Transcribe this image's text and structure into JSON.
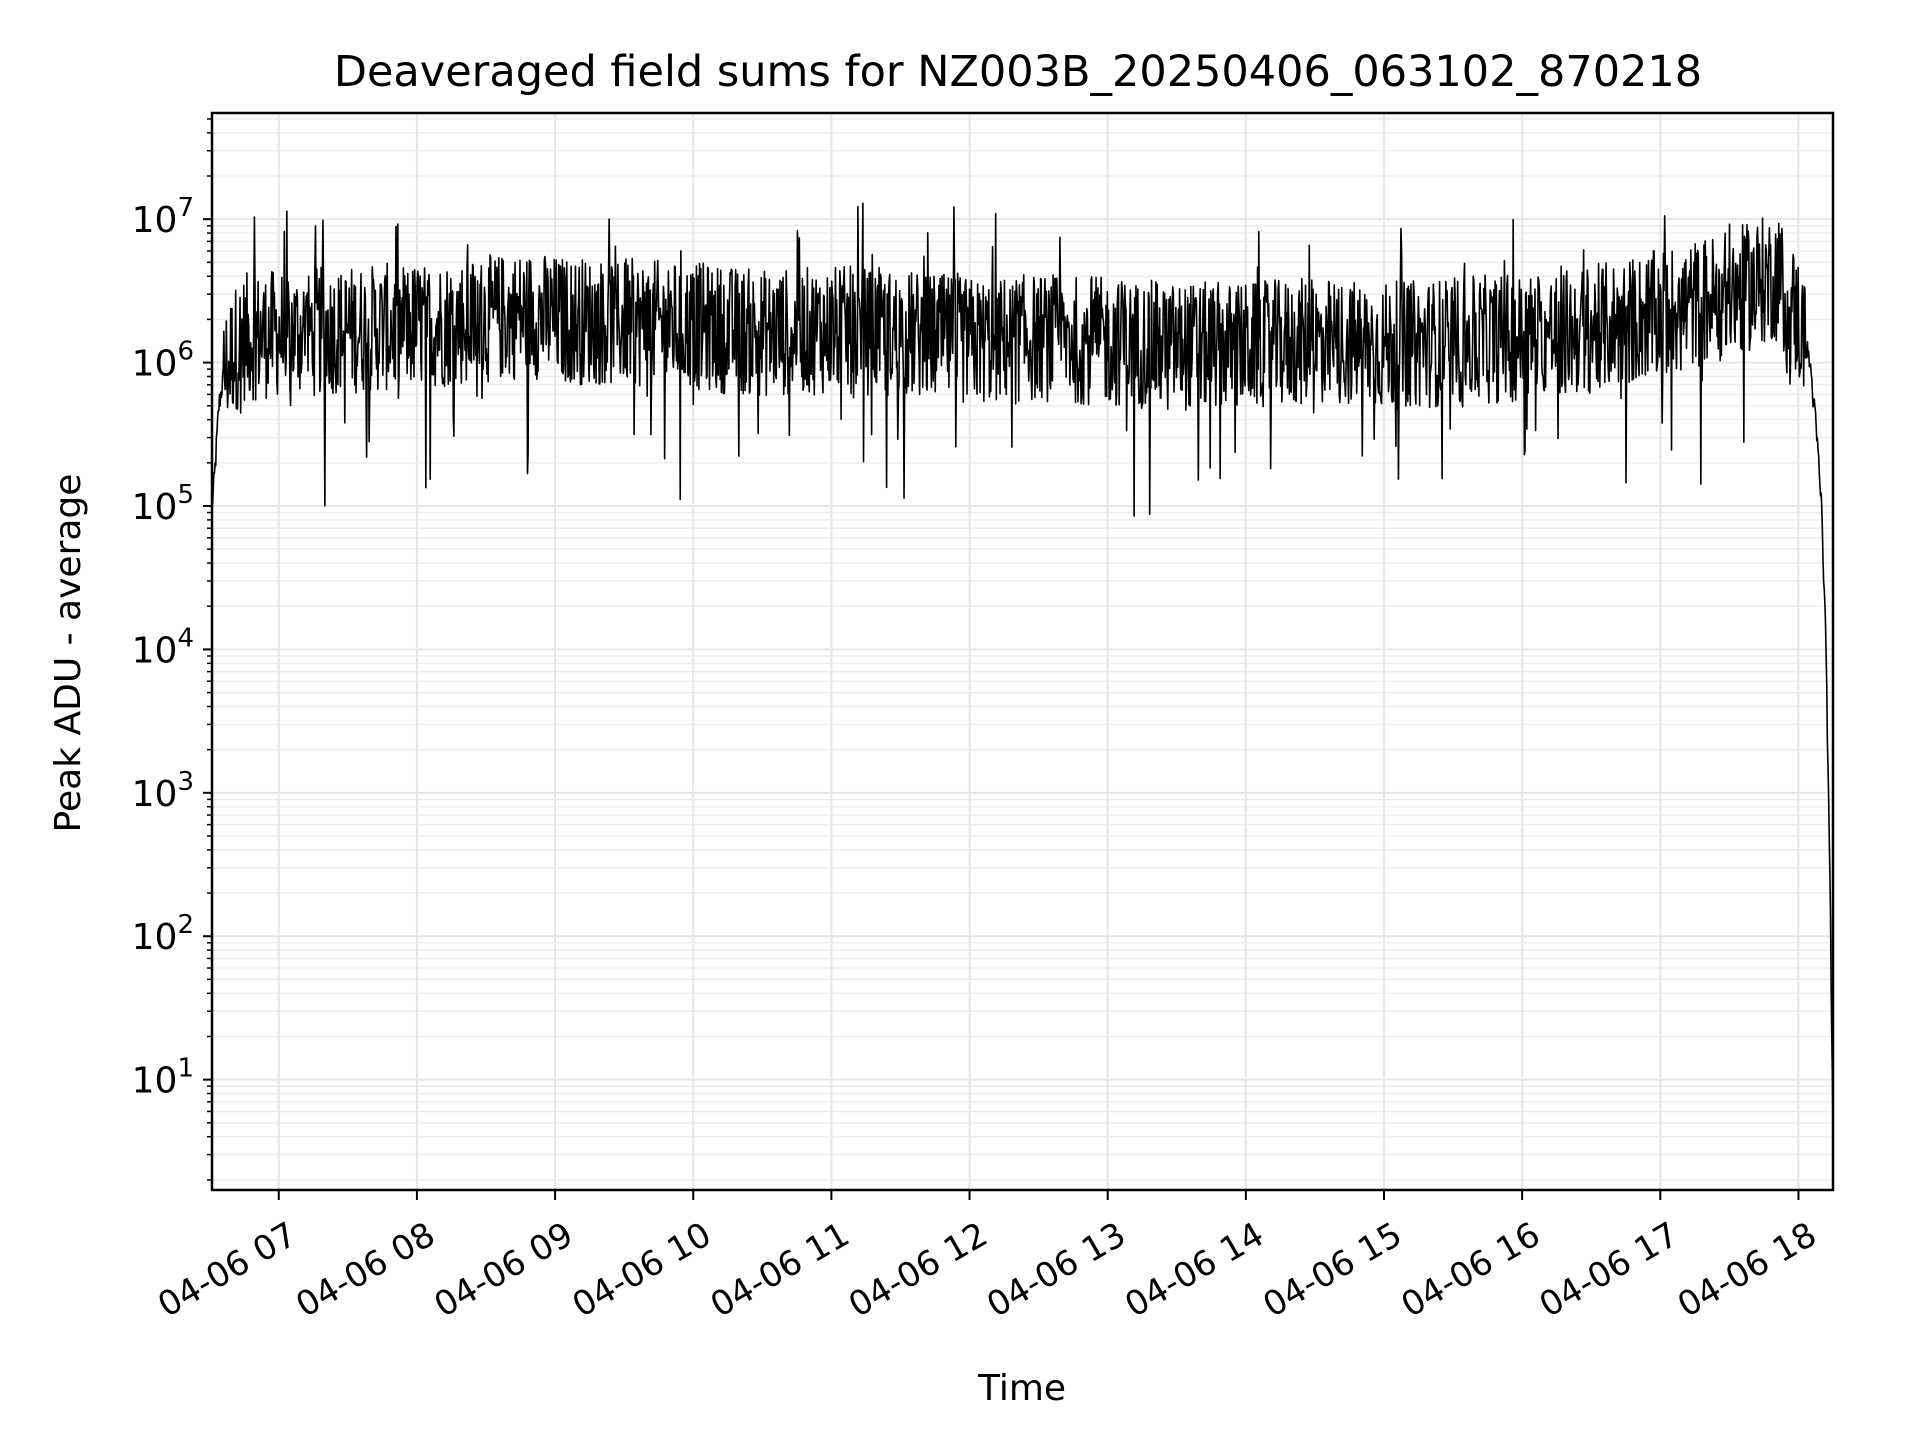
{
  "chart_data": {
    "type": "line",
    "title": "Deaveraged field sums for NZ003B_20250406_063102_870218",
    "xlabel": "Time",
    "ylabel": "Peak ADU - average",
    "yscale": "log",
    "ylim": [
      1.7,
      55000000
    ],
    "xlim": [
      "2025-04-06 06:31",
      "2025-04-06 18:15"
    ],
    "xticks": [
      "04-06 07",
      "04-06 08",
      "04-06 09",
      "04-06 10",
      "04-06 11",
      "04-06 12",
      "04-06 13",
      "04-06 14",
      "04-06 15",
      "04-06 16",
      "04-06 17",
      "04-06 18"
    ],
    "yticks": [
      {
        "value": 10,
        "base": "10",
        "exp": "1"
      },
      {
        "value": 100,
        "base": "10",
        "exp": "2"
      },
      {
        "value": 1000,
        "base": "10",
        "exp": "3"
      },
      {
        "value": 10000,
        "base": "10",
        "exp": "4"
      },
      {
        "value": 100000,
        "base": "10",
        "exp": "5"
      },
      {
        "value": 1000000,
        "base": "10",
        "exp": "6"
      },
      {
        "value": 10000000,
        "base": "10",
        "exp": "7"
      }
    ],
    "grid": true,
    "series": [
      {
        "color": "#000000",
        "x": [
          "2025-04-06 06:31",
          "2025-04-06 06:32",
          "2025-04-06 06:34",
          "2025-04-06 06:36",
          "2025-04-06 06:40",
          "2025-04-06 06:45",
          "2025-04-06 07:00",
          "2025-04-06 07:30",
          "2025-04-06 08:00",
          "2025-04-06 08:30",
          "2025-04-06 08:50",
          "2025-04-06 08:54",
          "2025-04-06 09:00",
          "2025-04-06 09:30",
          "2025-04-06 10:00",
          "2025-04-06 10:30",
          "2025-04-06 11:00",
          "2025-04-06 11:30",
          "2025-04-06 12:00",
          "2025-04-06 12:30",
          "2025-04-06 13:00",
          "2025-04-06 13:30",
          "2025-04-06 14:00",
          "2025-04-06 14:30",
          "2025-04-06 15:00",
          "2025-04-06 15:30",
          "2025-04-06 16:00",
          "2025-04-06 16:30",
          "2025-04-06 17:00",
          "2025-04-06 17:30",
          "2025-04-06 17:50",
          "2025-04-06 18:00",
          "2025-04-06 18:05",
          "2025-04-06 18:08",
          "2025-04-06 18:10",
          "2025-04-06 18:12",
          "2025-04-06 18:13",
          "2025-04-06 18:14",
          "2025-04-06 18:15"
        ],
        "y": [
          100000,
          150000,
          500000,
          800000,
          1200000,
          1500000,
          1600000,
          1700000,
          1800000,
          2000000,
          2200000,
          2100000,
          2000000,
          1900000,
          1800000,
          1600000,
          1700000,
          1600000,
          1400000,
          1500000,
          1400000,
          1300000,
          1300000,
          1400000,
          1300000,
          1400000,
          1500000,
          1700000,
          2200000,
          3000000,
          4000000,
          2000000,
          1000000,
          300000,
          100000,
          10000,
          1000,
          100,
          4
        ]
      }
    ]
  }
}
